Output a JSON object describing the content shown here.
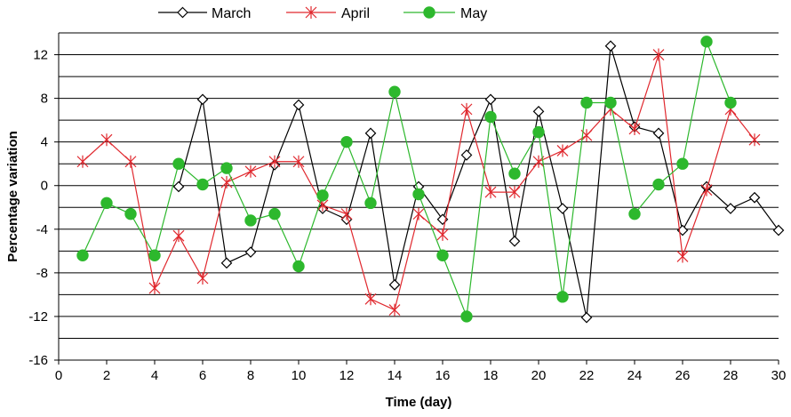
{
  "chart_data": {
    "type": "line",
    "xlabel": "Time (day)",
    "ylabel": "Percentage variation",
    "xlim": [
      0,
      30
    ],
    "ylim": [
      -16,
      14
    ],
    "x_ticks": [
      0,
      2,
      4,
      6,
      8,
      10,
      12,
      14,
      16,
      18,
      20,
      22,
      24,
      26,
      28,
      30
    ],
    "y_ticks": [
      -16,
      -12,
      -8,
      -4,
      0,
      4,
      8,
      12
    ],
    "grid": "horizontal lines every 2",
    "legend_position": "top",
    "series": [
      {
        "name": "March",
        "color": "#000000",
        "marker": "diamond-open",
        "x": [
          5,
          6,
          7,
          8,
          9,
          10,
          11,
          12,
          13,
          14,
          15,
          16,
          17,
          18,
          19,
          20,
          21,
          22,
          23,
          24,
          25,
          26,
          27,
          28,
          29,
          30
        ],
        "y": [
          -0.1,
          7.9,
          -7.1,
          -6.1,
          1.9,
          7.4,
          -2.1,
          -3.1,
          4.8,
          -9.1,
          -0.1,
          -3.1,
          2.8,
          7.9,
          -5.1,
          6.8,
          -2.1,
          -12.1,
          12.8,
          5.4,
          4.8,
          -4.1,
          -0.1,
          -2.1,
          -1.1,
          -4.1
        ]
      },
      {
        "name": "April",
        "color": "#e0282e",
        "marker": "asterisk",
        "x": [
          1,
          2,
          3,
          4,
          5,
          6,
          7,
          8,
          9,
          10,
          11,
          12,
          13,
          14,
          15,
          16,
          17,
          18,
          19,
          20,
          21,
          22,
          23,
          24,
          25,
          26,
          27,
          28,
          29
        ],
        "y": [
          2.2,
          4.2,
          2.2,
          -9.4,
          -4.6,
          -8.5,
          0.3,
          1.3,
          2.2,
          2.2,
          -1.8,
          -2.6,
          -10.4,
          -11.4,
          -2.6,
          -4.5,
          7.0,
          -0.6,
          -0.6,
          2.2,
          3.2,
          4.6,
          7.0,
          5.2,
          12.0,
          -6.5,
          -0.4,
          7.0,
          4.2
        ]
      },
      {
        "name": "May",
        "color": "#2db82d",
        "marker": "circle-filled",
        "x": [
          1,
          2,
          3,
          4,
          5,
          6,
          7,
          8,
          9,
          10,
          11,
          12,
          13,
          14,
          15,
          16,
          17,
          18,
          19,
          20,
          21,
          22,
          23,
          24,
          25,
          26,
          27,
          28
        ],
        "y": [
          -6.4,
          -1.6,
          -2.6,
          -6.4,
          2.0,
          0.1,
          1.6,
          -3.2,
          -2.6,
          -7.4,
          -0.9,
          4.0,
          -1.6,
          8.6,
          -0.8,
          -6.4,
          -12.0,
          6.3,
          1.1,
          4.9,
          -10.2,
          7.6,
          7.6,
          -2.6,
          0.1,
          2.0,
          13.2,
          7.6
        ]
      }
    ]
  }
}
